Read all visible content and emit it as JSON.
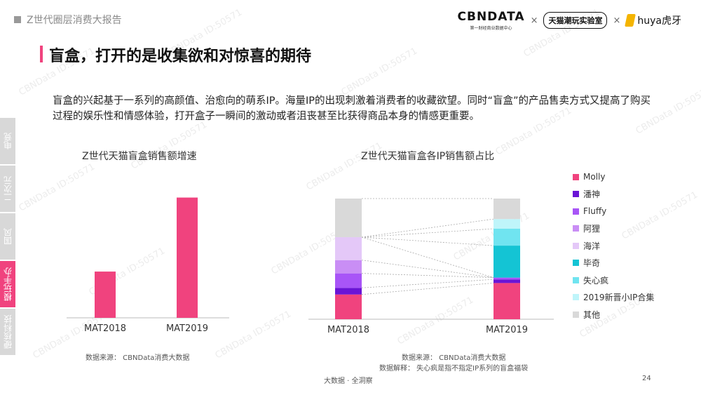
{
  "header": {
    "report_tag": "Z世代圈层消费大报告",
    "logos": {
      "cbn_main": "CBNDATA",
      "cbn_sub": "第一财经商业数据中心",
      "separator": "×",
      "tmall": "天猫潮玩实验室",
      "huya": "huya虎牙"
    }
  },
  "page": {
    "title": "盲盒，打开的是收集欲和对惊喜的期待",
    "intro": "盲盒的兴起基于一系列的高颜值、治愈向的萌系IP。海量IP的出现刺激着消费者的收藏欲望。同时“盲盒”的产品售卖方式又提高了购买过程的娱乐性和情感体验，打开盒子一瞬间的激动或者沮丧甚至比获得商品本身的情感更重要。"
  },
  "side_tabs": [
    {
      "label": "电竞",
      "active": false
    },
    {
      "label": "二次元",
      "active": false
    },
    {
      "label": "国风",
      "active": false
    },
    {
      "label": "模玩手办",
      "active": true
    },
    {
      "label": "硬核科技",
      "active": false
    }
  ],
  "watermark": "CBNData ID:50571",
  "colors": {
    "accent": "#f0437e"
  },
  "chart_data": [
    {
      "type": "bar",
      "title": "Z世代天猫盲盒销售额增速",
      "categories": [
        "MAT2018",
        "MAT2019"
      ],
      "values": [
        1.0,
        2.6
      ],
      "xlabel": "",
      "ylabel": "",
      "grid": false,
      "color": "#f0437e",
      "source": "数据来源： CBNData消费大数据"
    },
    {
      "type": "bar",
      "stacked": true,
      "normalized": true,
      "title": "Z世代天猫盲盒各IP销售额占比",
      "categories": [
        "MAT2018",
        "MAT2019"
      ],
      "series": [
        {
          "name": "Molly",
          "color": "#f0437e",
          "values": [
            20.5,
            30
          ]
        },
        {
          "name": "潘神",
          "color": "#6a14d6",
          "values": [
            5.5,
            3
          ]
        },
        {
          "name": "Fluffy",
          "color": "#a855f7",
          "values": [
            12,
            1.5
          ]
        },
        {
          "name": "阿狸",
          "color": "#c98ef5",
          "values": [
            11,
            0
          ]
        },
        {
          "name": "海洋",
          "color": "#e4c8f8",
          "values": [
            19,
            0
          ]
        },
        {
          "name": "毕奇",
          "color": "#14c4d4",
          "values": [
            0,
            26.5
          ]
        },
        {
          "name": "失心疯",
          "color": "#70e4f0",
          "values": [
            0,
            14
          ]
        },
        {
          "name": "2019新晋小IP合集",
          "color": "#bff5fa",
          "values": [
            0,
            8
          ]
        },
        {
          "name": "其他",
          "color": "#d9d9d9",
          "values": [
            32,
            17
          ]
        }
      ],
      "ylim": [
        0,
        100
      ],
      "grid": false,
      "legend": "right",
      "source": "数据来源： CBNData消费大数据",
      "note": "数据解释： 失心疯是指不指定IP系列的盲盒福袋"
    }
  ],
  "footer": {
    "slogan": "大数据 · 全洞察",
    "page_number": "24"
  }
}
